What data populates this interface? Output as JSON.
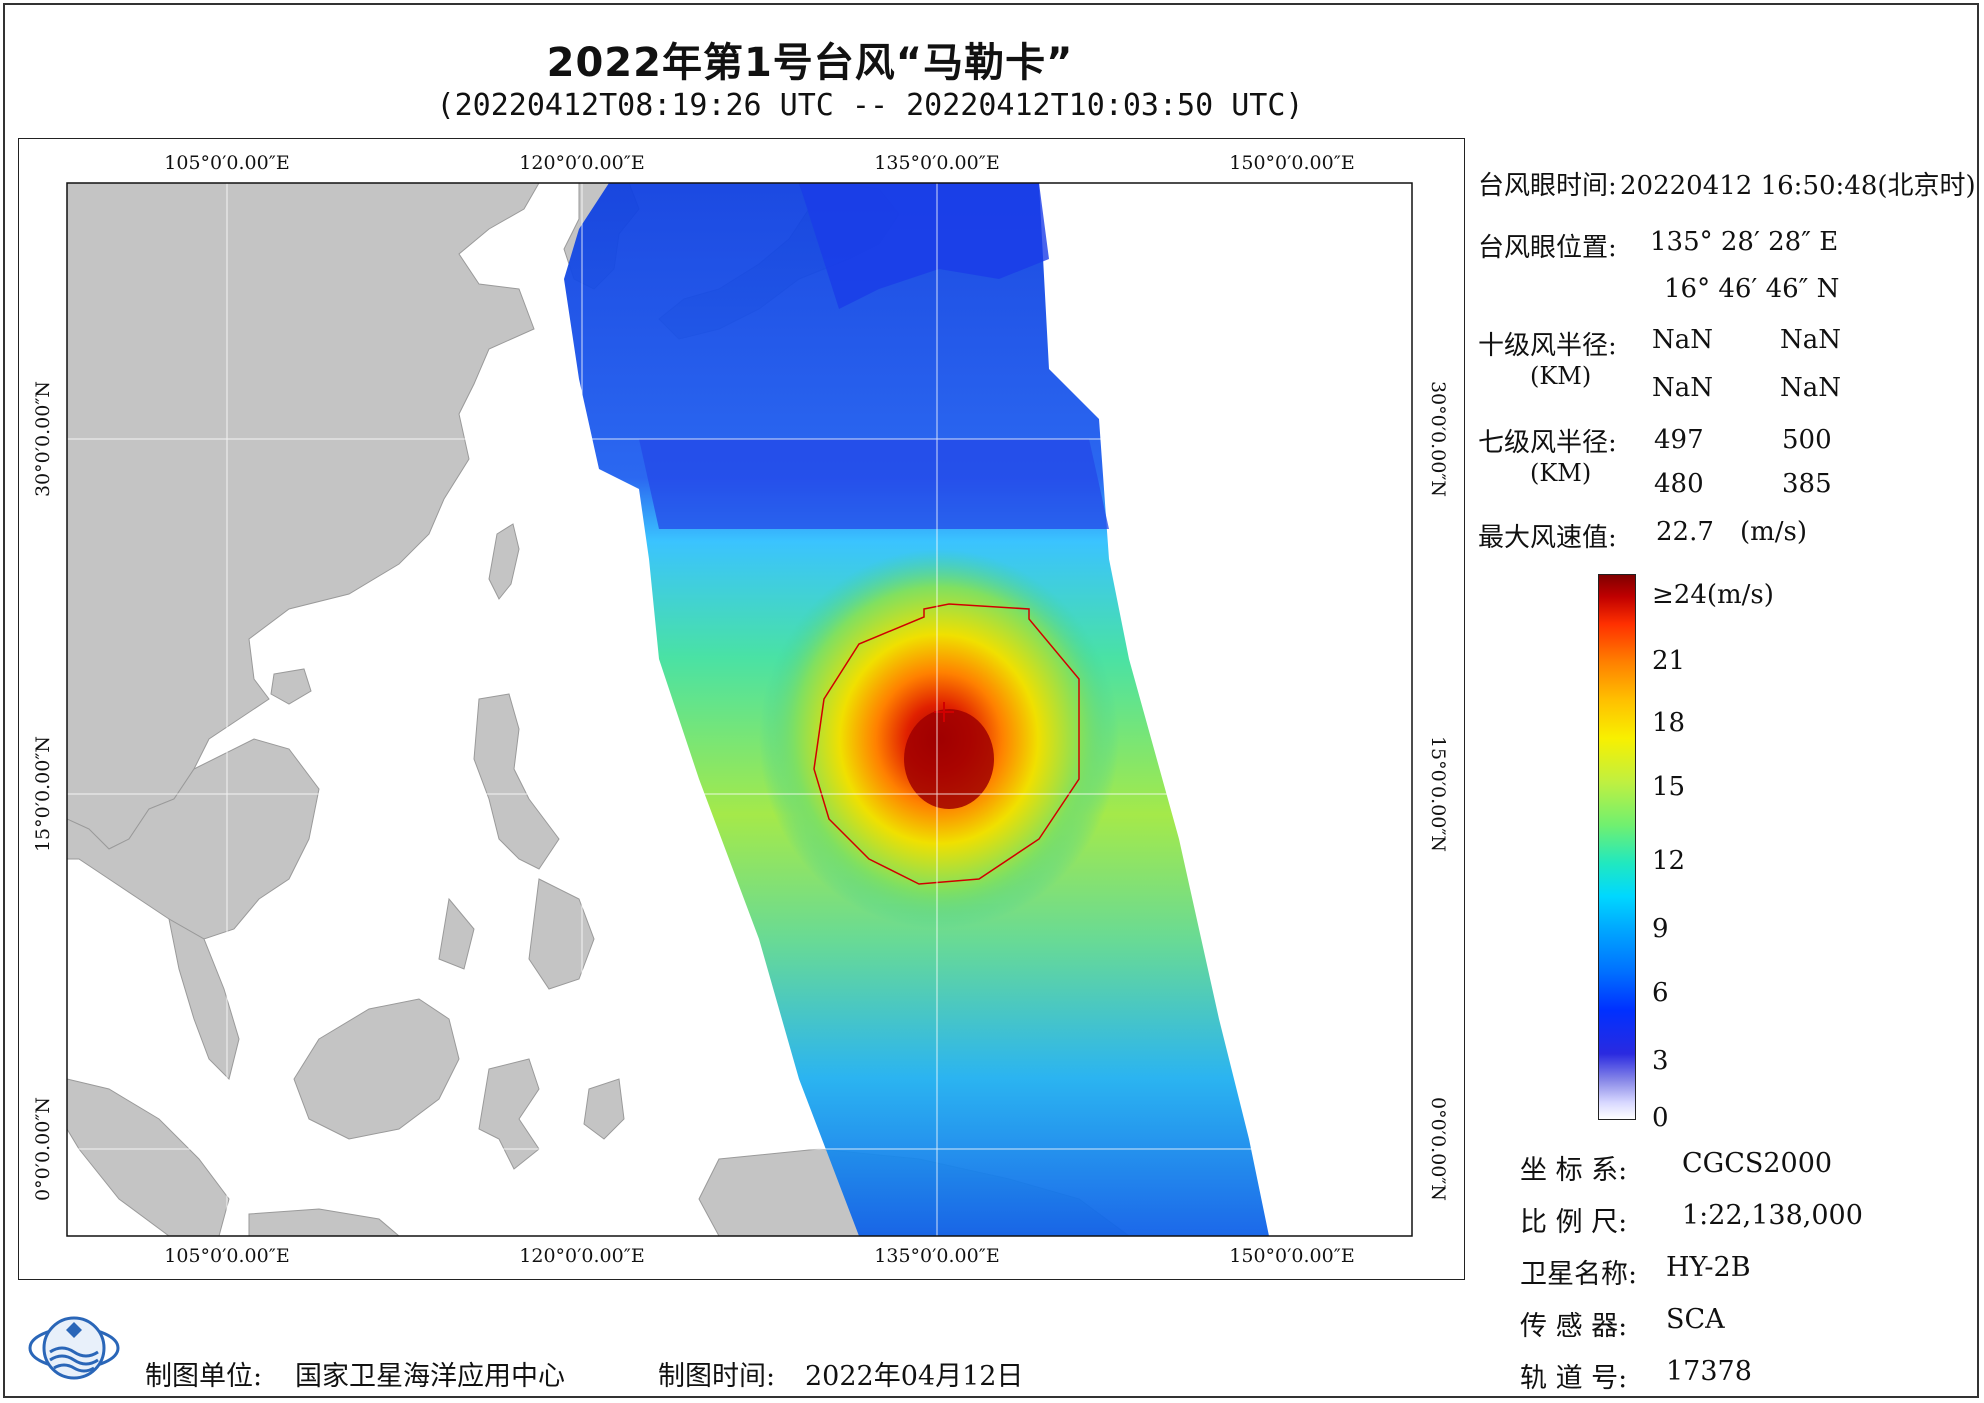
{
  "title": "2022年第1号台风“马勒卡”",
  "subtitle": "(20220412T08:19:26 UTC -- 20220412T10:03:50 UTC)",
  "map": {
    "lon_ticks": [
      "105°0′0.00″E",
      "120°0′0.00″E",
      "135°0′0.00″E",
      "150°0′0.00″E"
    ],
    "lat_ticks": [
      "30°0′0.00″N",
      "15°0′0.00″N",
      "0°0′0.00″N"
    ],
    "land_color": "#c4c4c4",
    "ocean_color": "#ffffff"
  },
  "eye": {
    "time_label": "台风眼时间:",
    "time_value": "20220412 16:50:48(北京时)",
    "pos_label": "台风眼位置:",
    "lon": "135° 28′ 28″ E",
    "lat": "16° 46′ 46″ N"
  },
  "radius10": {
    "label": "十级风半径:",
    "unit": "(KM)",
    "values": [
      "NaN",
      "NaN",
      "NaN",
      "NaN"
    ]
  },
  "radius7": {
    "label": "七级风半径:",
    "unit": "(KM)",
    "values": [
      "497",
      "500",
      "480",
      "385"
    ]
  },
  "maxwind": {
    "label": "最大风速值:",
    "value": "22.7",
    "unit": "(m/s)"
  },
  "colorbar": {
    "labels": [
      "≥24(m/s)",
      "21",
      "18",
      "15",
      "12",
      "9",
      "6",
      "3",
      "0"
    ]
  },
  "info": {
    "crs_label": "坐 标 系:",
    "crs_value": "CGCS2000",
    "scale_label": "比 例 尺:",
    "scale_value": "1:22,138,000",
    "sat_label": "卫星名称:",
    "sat_value": "HY-2B",
    "sensor_label": "传 感 器:",
    "sensor_value": "SCA",
    "orbit_label": "轨 道 号:",
    "orbit_value": "17378"
  },
  "footer": {
    "unit_label": "制图单位:",
    "unit_value": "国家卫星海洋应用中心",
    "time_label": "制图时间:",
    "time_value": "2022年04月12日"
  }
}
